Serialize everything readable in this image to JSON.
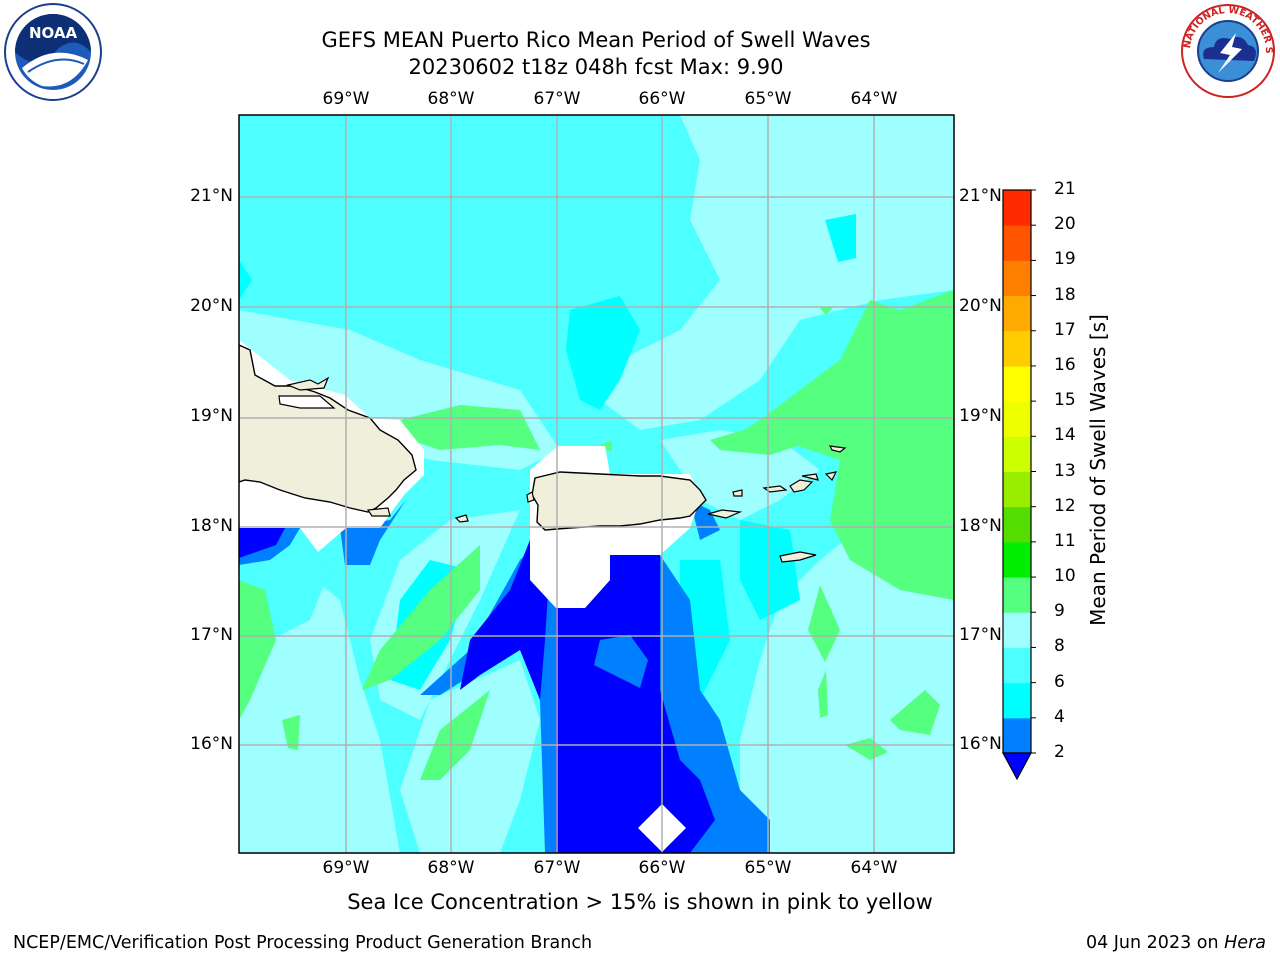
{
  "title_line1": "GEFS MEAN Puerto Rico Mean Period of Swell Waves",
  "title_line2": "20230602 t18z 048h fcst   Max: 9.90",
  "lon_labels": [
    "69°W",
    "68°W",
    "67°W",
    "66°W",
    "65°W",
    "64°W"
  ],
  "lat_labels": [
    "21°N",
    "20°N",
    "19°N",
    "18°N",
    "17°N",
    "16°N"
  ],
  "colorbar": {
    "label": "Mean Period of Swell Waves [s]",
    "ticks": [
      "2",
      "4",
      "6",
      "8",
      "9",
      "10",
      "11",
      "12",
      "13",
      "14",
      "15",
      "16",
      "17",
      "18",
      "19",
      "20",
      "21"
    ],
    "colors": [
      "#0000ff",
      "#0080ff",
      "#00ffff",
      "#4dffff",
      "#9fffff",
      "#55ff7f",
      "#00ee00",
      "#55dd00",
      "#99ee00",
      "#ccff00",
      "#eeff00",
      "#ffff00",
      "#ffcc00",
      "#ffaa00",
      "#ff8000",
      "#ff5500",
      "#ff2a00",
      "#ff0000"
    ]
  },
  "caption": "Sea Ice Concentration > 15% is shown in pink to yellow",
  "footer_left": "NCEP/EMC/Verification Post Processing Product Generation Branch",
  "footer_right_prefix": "04 Jun 2023 on ",
  "footer_right_host": "Hera",
  "logos": {
    "left": "NOAA",
    "right": "NATIONAL WEATHER SERVICE"
  }
}
